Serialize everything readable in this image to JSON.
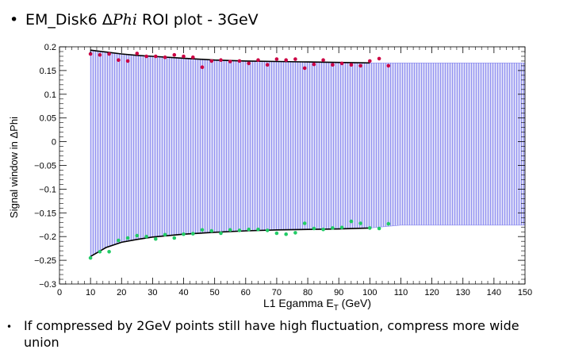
{
  "slide": {
    "title_part1": "EM_Disk6 Δ",
    "title_phi": "Phi",
    "title_part2": " ROI plot - 3GeV",
    "bullet_symbol": "•",
    "note": "If compressed by 2GeV points still have high fluctuation, compress more wide union"
  },
  "chart_data": {
    "type": "scatter",
    "xlabel": "L1 Egamma E",
    "xlabel_sub": "T",
    "xlabel_unit": " (GeV)",
    "ylabel": "Signal window in ΔPhi",
    "xlim": [
      0,
      150
    ],
    "ylim": [
      -0.3,
      0.2
    ],
    "x_ticks": [
      0,
      10,
      20,
      30,
      40,
      50,
      60,
      70,
      80,
      90,
      100,
      110,
      120,
      130,
      140,
      150
    ],
    "y_ticks": [
      -0.3,
      -0.25,
      -0.2,
      -0.15,
      -0.1,
      -0.05,
      0,
      0.05,
      0.1,
      0.15,
      0.2
    ],
    "y_tick_labels": [
      "−0.3",
      "−0.25",
      "−0.2",
      "−0.15",
      "−0.1",
      "−0.05",
      "0",
      "0.05",
      "0.1",
      "0.15",
      "0.2"
    ],
    "colors": {
      "band": "#8c8cf0",
      "upper_points": "#cc0044",
      "lower_points": "#22cc66",
      "fit": "#000000",
      "frame": "#000000"
    },
    "series": [
      {
        "role": "upper-points",
        "x": [
          10,
          13,
          16,
          19,
          22,
          25,
          28,
          31,
          34,
          37,
          40,
          43,
          46,
          49,
          52,
          55,
          58,
          61,
          64,
          67,
          70,
          73,
          76,
          79,
          82,
          85,
          88,
          91,
          94,
          97,
          100,
          103,
          106
        ],
        "y": [
          0.185,
          0.183,
          0.185,
          0.172,
          0.17,
          0.186,
          0.18,
          0.18,
          0.178,
          0.183,
          0.18,
          0.178,
          0.157,
          0.17,
          0.172,
          0.169,
          0.17,
          0.165,
          0.172,
          0.162,
          0.174,
          0.172,
          0.174,
          0.155,
          0.163,
          0.172,
          0.162,
          0.165,
          0.162,
          0.16,
          0.17,
          0.175,
          0.16
        ]
      },
      {
        "role": "lower-points",
        "x": [
          10,
          13,
          16,
          19,
          22,
          25,
          28,
          31,
          34,
          37,
          40,
          43,
          46,
          49,
          52,
          55,
          58,
          61,
          64,
          67,
          70,
          73,
          76,
          79,
          82,
          85,
          88,
          91,
          94,
          97,
          100,
          103,
          106
        ],
        "y": [
          -0.245,
          -0.232,
          -0.232,
          -0.208,
          -0.203,
          -0.198,
          -0.2,
          -0.205,
          -0.196,
          -0.203,
          -0.195,
          -0.194,
          -0.186,
          -0.188,
          -0.193,
          -0.186,
          -0.187,
          -0.185,
          -0.185,
          -0.187,
          -0.193,
          -0.195,
          -0.192,
          -0.172,
          -0.183,
          -0.185,
          -0.182,
          -0.181,
          -0.168,
          -0.172,
          -0.182,
          -0.183,
          -0.173
        ]
      },
      {
        "role": "upper-fit",
        "x": [
          10,
          15,
          20,
          25,
          30,
          40,
          50,
          60,
          70,
          80,
          90,
          100
        ],
        "y": [
          0.193,
          0.189,
          0.185,
          0.182,
          0.18,
          0.176,
          0.172,
          0.17,
          0.169,
          0.168,
          0.167,
          0.166
        ]
      },
      {
        "role": "lower-fit",
        "x": [
          10,
          15,
          20,
          25,
          30,
          40,
          50,
          60,
          70,
          80,
          90,
          100
        ],
        "y": [
          -0.242,
          -0.223,
          -0.212,
          -0.206,
          -0.201,
          -0.195,
          -0.191,
          -0.188,
          -0.186,
          -0.185,
          -0.184,
          -0.182
        ]
      },
      {
        "role": "acceptance-band",
        "x": [
          10,
          15,
          20,
          25,
          30,
          40,
          50,
          60,
          70,
          80,
          90,
          100,
          110,
          150
        ],
        "upper": [
          0.193,
          0.189,
          0.185,
          0.182,
          0.18,
          0.176,
          0.172,
          0.17,
          0.169,
          0.168,
          0.167,
          0.166,
          0.166,
          0.166
        ],
        "lower": [
          -0.242,
          -0.223,
          -0.212,
          -0.206,
          -0.201,
          -0.195,
          -0.191,
          -0.188,
          -0.186,
          -0.185,
          -0.184,
          -0.182,
          -0.176,
          -0.176
        ]
      }
    ],
    "grid": false,
    "legend": "none"
  }
}
